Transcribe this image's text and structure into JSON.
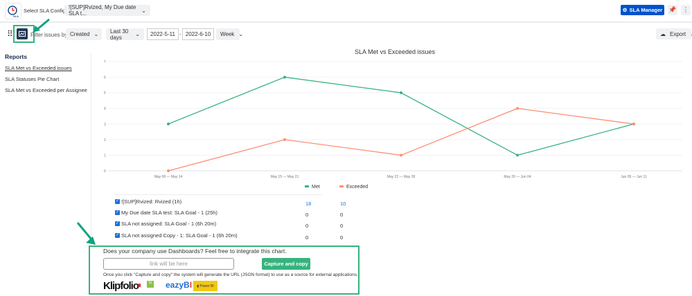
{
  "header": {
    "logo_text": "SLA",
    "config_label": "Select SLA Config",
    "config_value": "![SUP]Rvized, My Due date SLA t...",
    "manager_button": "SLA Manager"
  },
  "toolbar": {
    "filter_label": "Filter issues by:",
    "filter_value": "Created",
    "range_value": "Last 30 days",
    "date_from": "2022-5-11",
    "date_sep": "-",
    "date_to": "2022-6-10",
    "period_value": "Week",
    "export_label": "Export"
  },
  "sidebar": {
    "title": "Reports",
    "items": [
      {
        "label": "SLA Met vs Exceeded issues"
      },
      {
        "label": "SLA Statuses Pie Chart"
      },
      {
        "label": "SLA Met vs Exceeded per Assignee"
      }
    ]
  },
  "chart_data": {
    "type": "line",
    "title": "SLA Met vs Exceeded issues",
    "categories": [
      "May 08 — May 14",
      "May 15 — May 21",
      "May 22 — May 28",
      "May 29 — Jun 04",
      "Jun 05 — Jun 11"
    ],
    "ylim": [
      0,
      7
    ],
    "yticks": [
      "0",
      "1",
      "2",
      "3",
      "4",
      "5",
      "6",
      "7"
    ],
    "grid": true,
    "legend": "bottom",
    "series": [
      {
        "name": "Met",
        "color": "#36b37e",
        "values": [
          3,
          6,
          5,
          1,
          3
        ]
      },
      {
        "name": "Exceeded",
        "color": "#ff8f73",
        "values": [
          0,
          2,
          1,
          4,
          3
        ]
      }
    ]
  },
  "table": {
    "rows": [
      {
        "label": "![SUP]Rvized: Rvized (1h)",
        "met": "18",
        "exceeded": "10"
      },
      {
        "label": "My Due date SLA test: SLA Goal - 1 (25h)",
        "met": "0",
        "exceeded": "0"
      },
      {
        "label": "SLA not assigned: SLA Goal - 1 (6h 20m)",
        "met": "0",
        "exceeded": "0"
      },
      {
        "label": "SLA not assigned Copy - 1: SLA Goal - 1 (6h 20m)",
        "met": "0",
        "exceeded": "0"
      }
    ]
  },
  "integration": {
    "question": "Does your company use Dashboards? Feel free to integrate this chart.",
    "link_placeholder": "link will be here",
    "capture_button": "Capture and copy",
    "note": "Once you click \"Capture and copy\" the system will generate the URL (JSON format) to use as a source for external applications.",
    "logos": [
      "Klipfolio",
      "Geckoboard",
      "eazyBI",
      "Power BI"
    ]
  }
}
